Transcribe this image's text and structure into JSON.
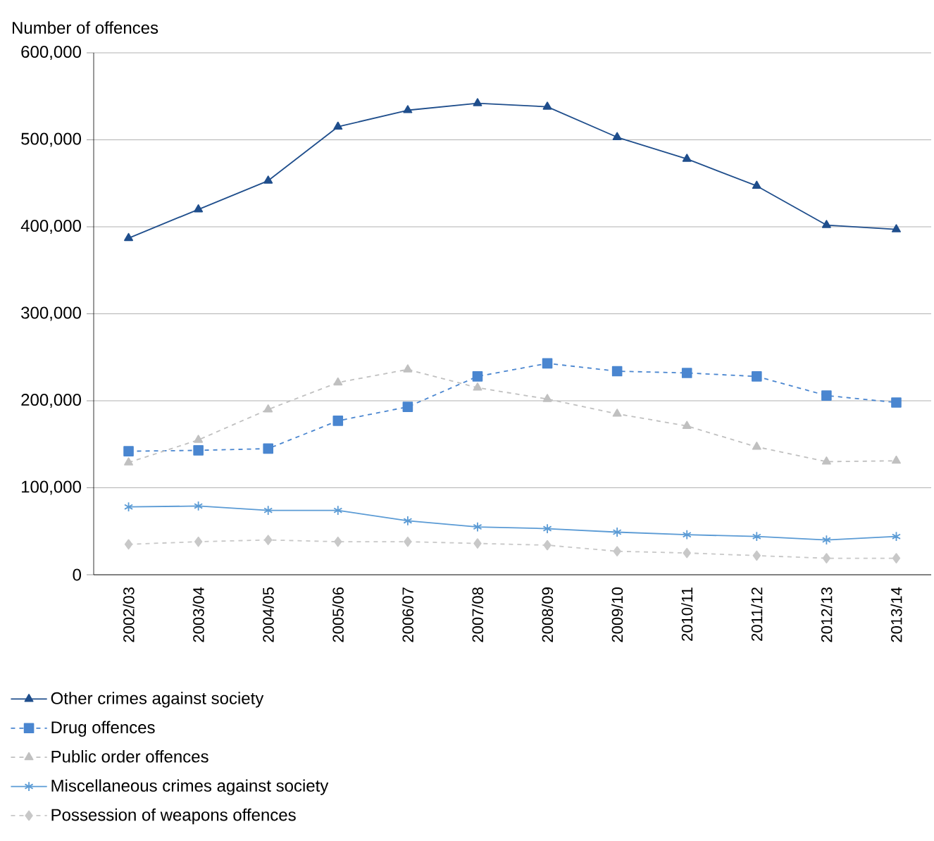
{
  "chart_data": {
    "type": "line",
    "ylabel": "Number of offences",
    "categories": [
      "2002/03",
      "2003/04",
      "2004/05",
      "2005/06",
      "2006/07",
      "2007/08",
      "2008/09",
      "2009/10",
      "2010/11",
      "2011/12",
      "2012/13",
      "2013/14"
    ],
    "series": [
      {
        "name": "Other crimes against society",
        "color": "#1f4e8c",
        "marker": "triangle",
        "line_style": "solid",
        "values": [
          387000,
          420000,
          453000,
          515000,
          534000,
          542000,
          538000,
          503000,
          478000,
          447000,
          402000,
          397000
        ]
      },
      {
        "name": "Drug offences",
        "color": "#4a86d0",
        "marker": "square",
        "line_style": "dashed",
        "values": [
          142000,
          143000,
          145000,
          177000,
          193000,
          228000,
          243000,
          234000,
          232000,
          228000,
          206000,
          198000
        ]
      },
      {
        "name": "Public order offences",
        "color": "#c0c0c0",
        "marker": "triangle",
        "line_style": "dashed",
        "values": [
          129000,
          155000,
          190000,
          221000,
          236000,
          215000,
          202000,
          185000,
          171000,
          147000,
          130000,
          131000
        ]
      },
      {
        "name": "Miscellaneous crimes against society",
        "color": "#5b9bd5",
        "marker": "cross",
        "line_style": "solid",
        "values": [
          78000,
          79000,
          74000,
          74000,
          62000,
          55000,
          53000,
          49000,
          46000,
          44000,
          40000,
          44000
        ]
      },
      {
        "name": "Possession of weapons offences",
        "color": "#c8c8c8",
        "marker": "diamond",
        "line_style": "dashed",
        "values": [
          35000,
          38000,
          40000,
          38000,
          38000,
          36000,
          34000,
          27000,
          25000,
          22000,
          19000,
          19000
        ]
      }
    ],
    "ylim": [
      0,
      600000
    ],
    "yticks": [
      0,
      {
        "value": 100000,
        "label": "100,000"
      },
      {
        "value": 200000,
        "label": "200,000"
      },
      {
        "value": 300000,
        "label": "300,000"
      },
      {
        "value": 400000,
        "label": "400,000"
      },
      {
        "value": 500000,
        "label": "500,000"
      },
      {
        "value": 600000,
        "label": "600,000"
      }
    ],
    "grid": "y",
    "legend": "bottom"
  }
}
